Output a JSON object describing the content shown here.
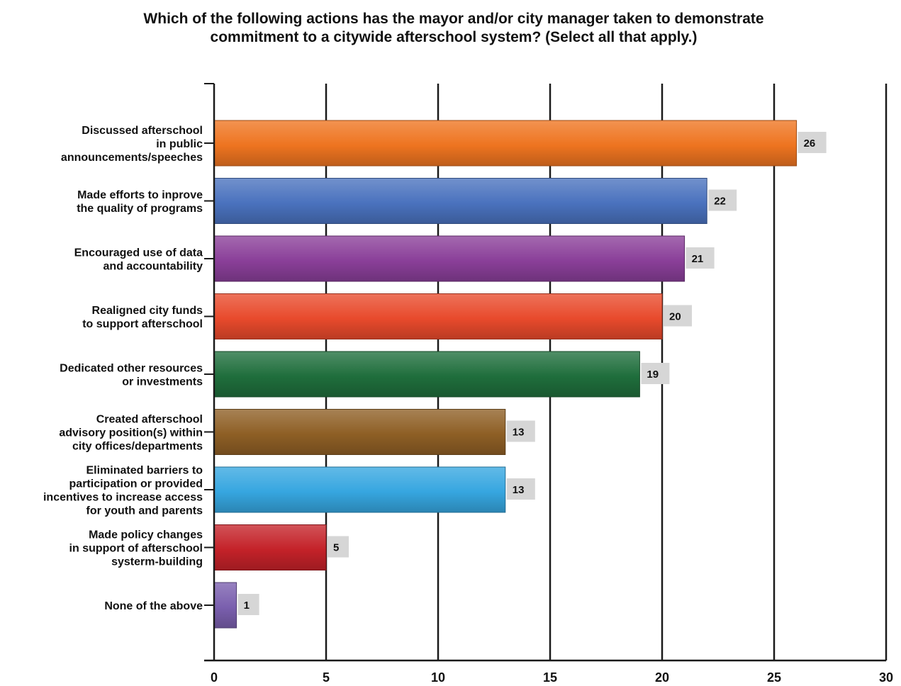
{
  "chart_data": {
    "type": "bar",
    "orientation": "horizontal",
    "title": "Which of the following actions has the mayor and/or city manager taken to demonstrate\ncommitment to a citywide afterschool system? (Select all that apply.)",
    "categories": [
      [
        "Discussed afterschool",
        "in public",
        "announcements/speeches"
      ],
      [
        "Made efforts to inprove",
        "the quality of programs"
      ],
      [
        "Encouraged use of data",
        "and accountability"
      ],
      [
        "Realigned city funds",
        "to support afterschool"
      ],
      [
        "Dedicated other resources",
        "or investments"
      ],
      [
        "Created afterschool",
        "advisory position(s) within",
        "city offices/departments"
      ],
      [
        "Eliminated barriers to",
        "participation or provided",
        "incentives to increase access",
        "for youth and parents"
      ],
      [
        "Made policy changes",
        "in support of afterschool",
        "systerm-building"
      ],
      [
        "None of the above"
      ]
    ],
    "values": [
      26,
      22,
      21,
      20,
      19,
      13,
      13,
      5,
      1
    ],
    "colors": [
      "#ee7420",
      "#4a72be",
      "#8a3f99",
      "#e84a2c",
      "#1f6e3c",
      "#8e5f25",
      "#36a6e0",
      "#c42229",
      "#7a5fae"
    ],
    "xlim": [
      0,
      30
    ],
    "xticks": [
      0,
      5,
      10,
      15,
      20,
      25,
      30
    ],
    "xtick_labels": [
      "0",
      "5",
      "10",
      "15",
      "20",
      "25",
      "30"
    ],
    "grid": true,
    "data_labels": true
  }
}
